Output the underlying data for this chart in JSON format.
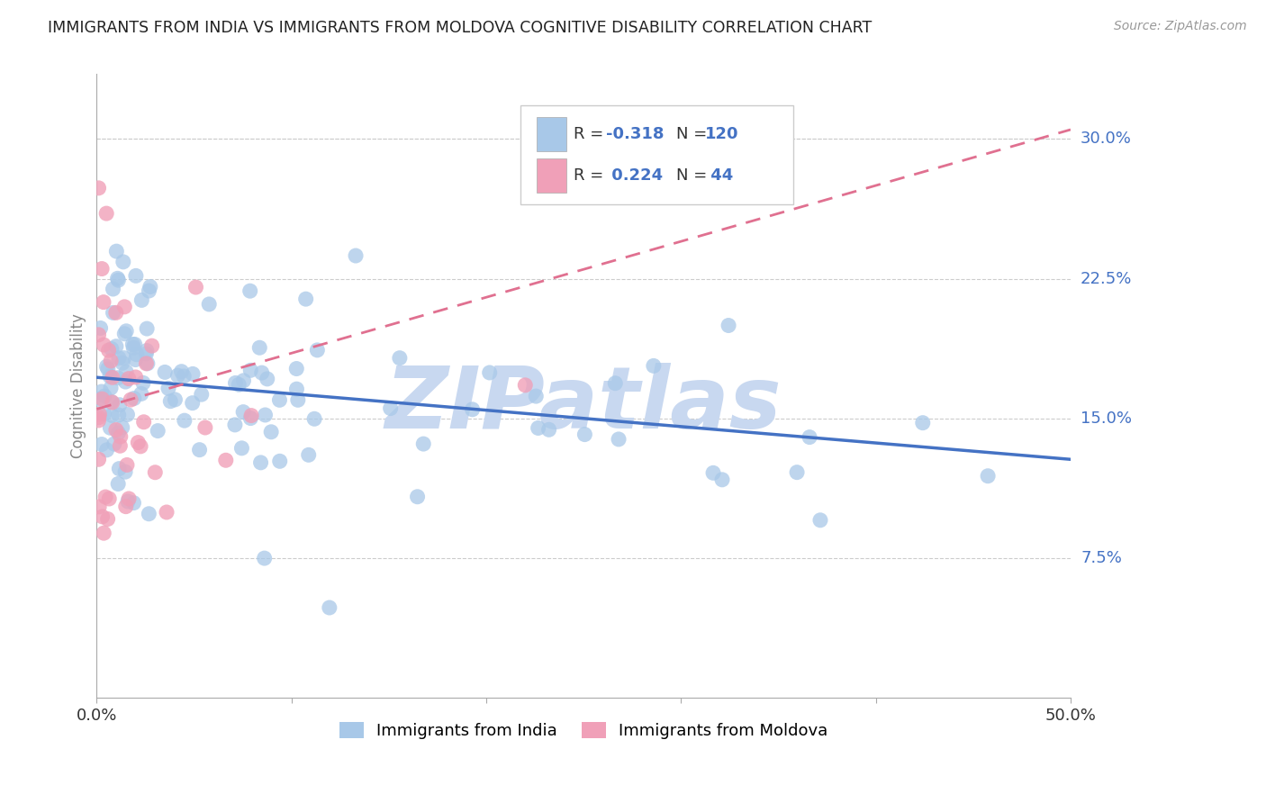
{
  "title": "IMMIGRANTS FROM INDIA VS IMMIGRANTS FROM MOLDOVA COGNITIVE DISABILITY CORRELATION CHART",
  "source": "Source: ZipAtlas.com",
  "ylabel": "Cognitive Disability",
  "xlim": [
    0.0,
    0.5
  ],
  "ylim": [
    0.0,
    0.335
  ],
  "ytick_labels_right": [
    "7.5%",
    "15.0%",
    "22.5%",
    "30.0%"
  ],
  "ytick_vals_right": [
    0.075,
    0.15,
    0.225,
    0.3
  ],
  "india_color": "#A8C8E8",
  "moldova_color": "#F0A0B8",
  "india_line_color": "#4472C4",
  "moldova_line_color": "#E07090",
  "watermark": "ZIPatlas",
  "watermark_color": "#C8D8F0",
  "india_trend_x": [
    0.0,
    0.5
  ],
  "india_trend_y": [
    0.172,
    0.128
  ],
  "moldova_trend_x": [
    0.0,
    0.5
  ],
  "moldova_trend_y": [
    0.155,
    0.305
  ],
  "background_color": "#FFFFFF",
  "grid_color": "#CCCCCC",
  "title_color": "#222222",
  "axis_label_color": "#888888",
  "right_tick_color": "#4472C4"
}
